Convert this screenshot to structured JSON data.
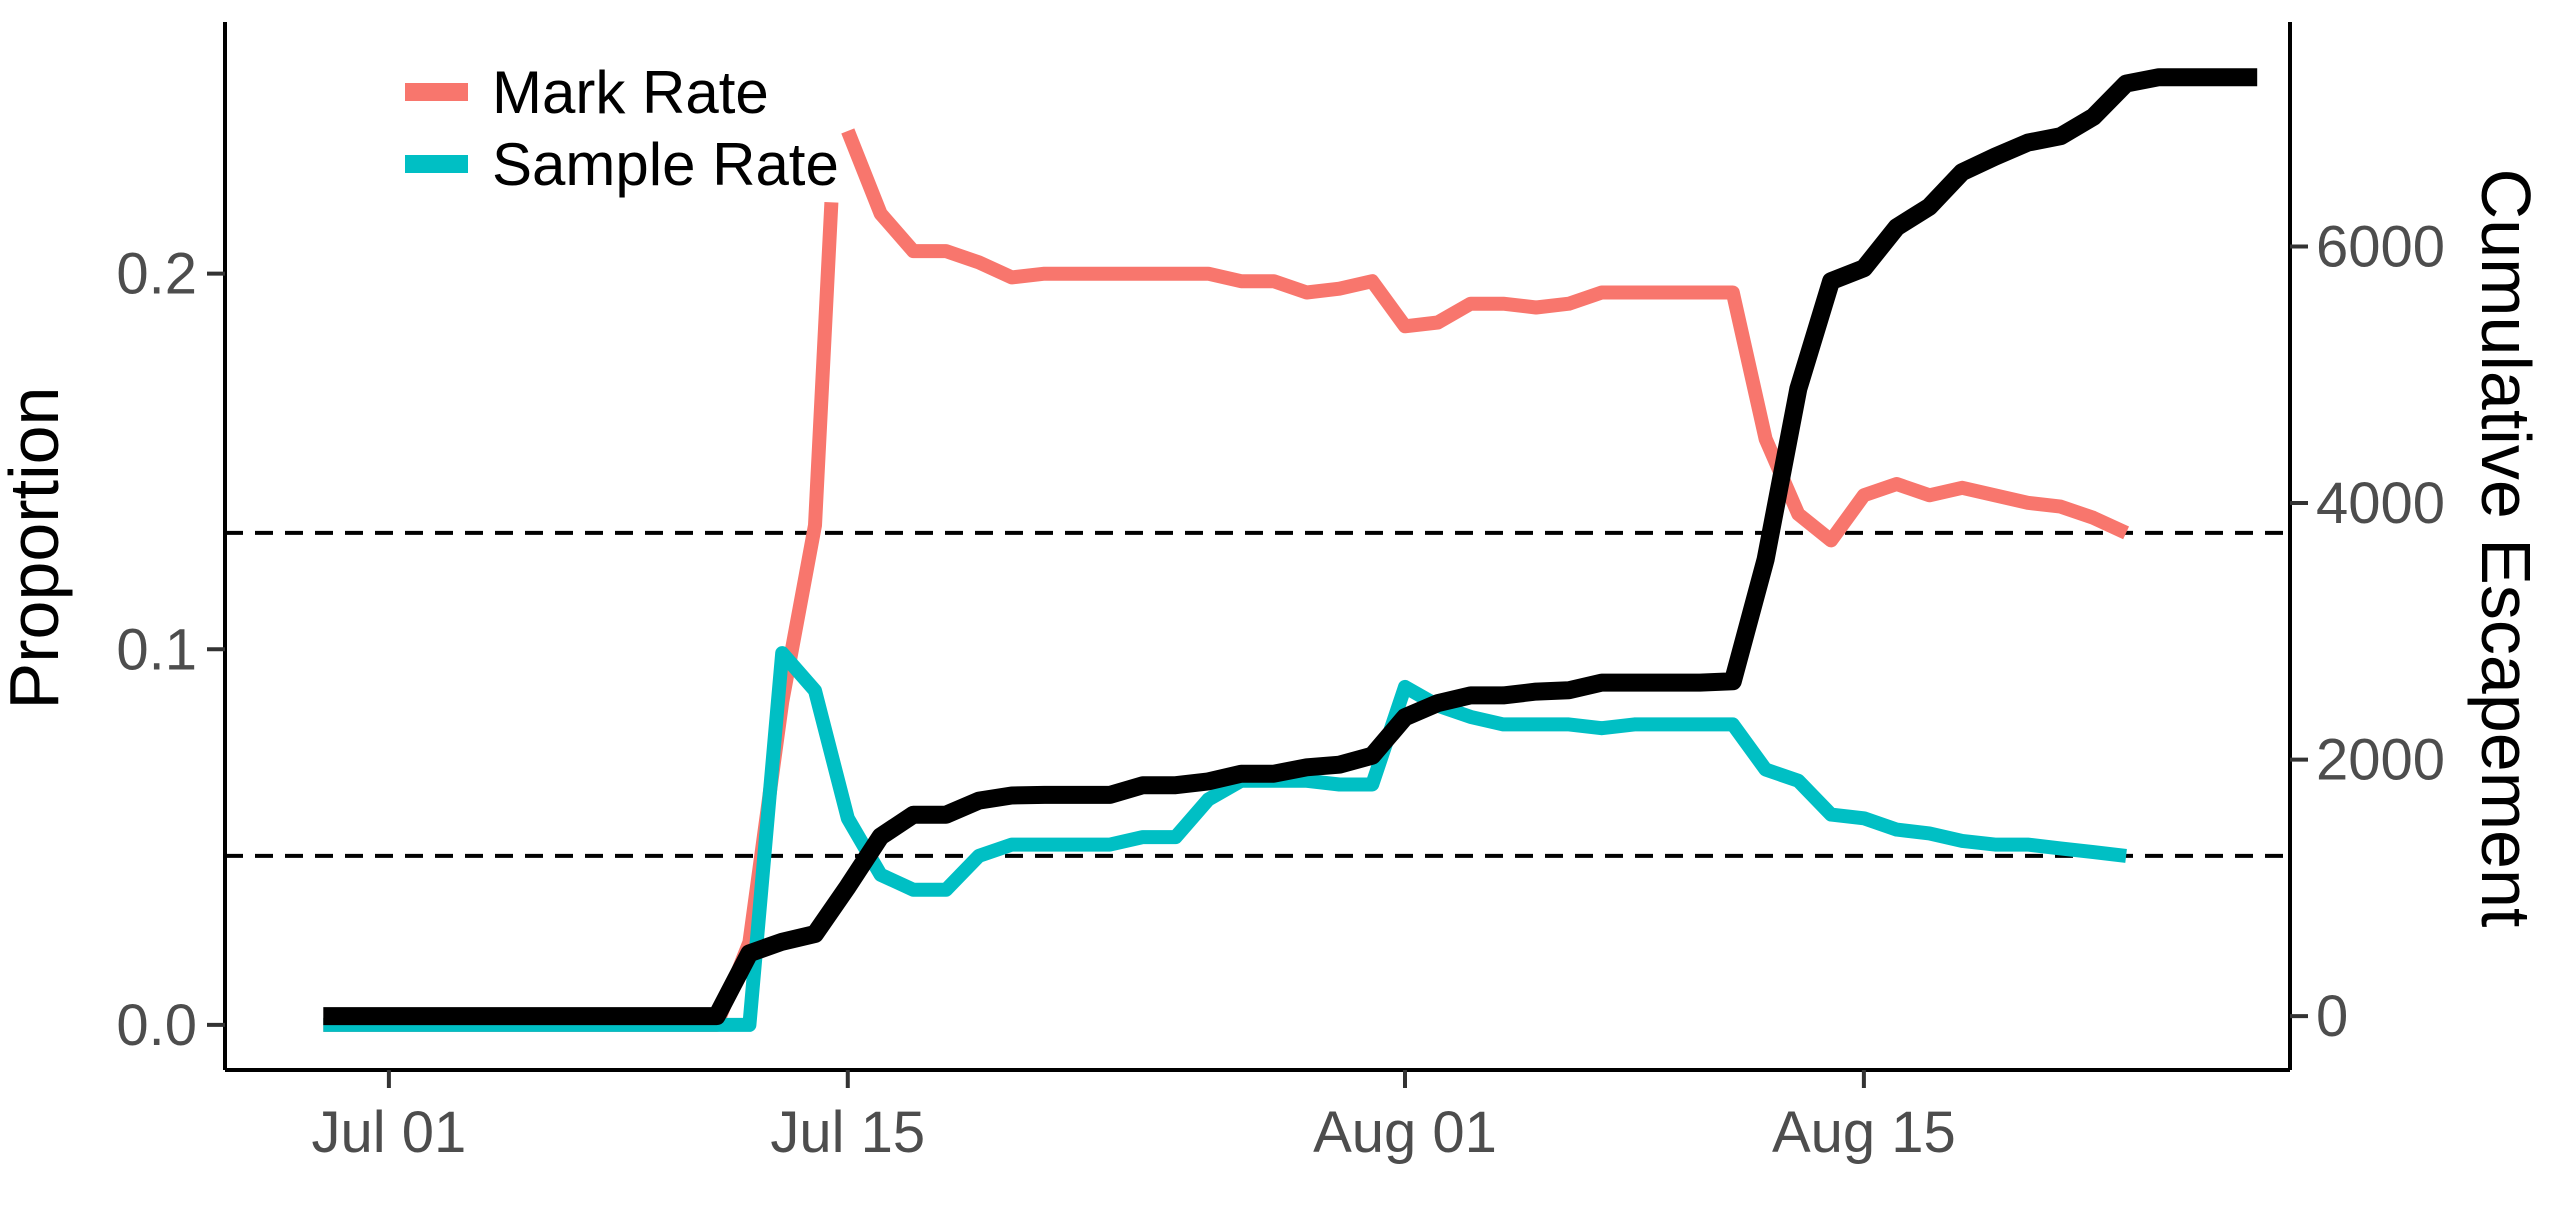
{
  "chart_data": {
    "type": "line",
    "title": "",
    "xlabel": "",
    "ylabel": "Proportion",
    "y2label": "Cumulative Escapement",
    "x_ticks": [
      "Jul 01",
      "Jul 15",
      "Aug 01",
      "Aug 15"
    ],
    "xlim": [
      "2020-06-26",
      "2020-08-28"
    ],
    "ylim": [
      -0.012,
      0.267
    ],
    "y_ticks": [
      "0.0",
      "0.1",
      "0.2"
    ],
    "y2lim": [
      -420,
      7750
    ],
    "y2_ticks": [
      "0",
      "2000",
      "4000",
      "6000"
    ],
    "grid": false,
    "legend_position": "top-left",
    "reference_lines": [
      {
        "axis": "y",
        "value": 0.131,
        "style": "dashed",
        "color": "#000000"
      },
      {
        "axis": "y",
        "value": 0.045,
        "style": "dashed",
        "color": "#000000"
      }
    ],
    "series": [
      {
        "name": "Mark Rate",
        "axis": "left",
        "color": "#F8766D",
        "segments": [
          {
            "x": [
              "2020-06-29",
              "2020-07-01",
              "2020-07-04",
              "2020-07-07",
              "2020-07-10",
              "2020-07-11",
              "2020-07-12",
              "2020-07-13",
              "2020-07-14",
              "2020-07-14T12:00"
            ],
            "y": [
              0.0,
              0.0,
              0.0,
              0.0,
              0.0,
              0.0,
              0.022,
              0.086,
              0.133,
              0.219
            ]
          },
          {
            "x": [
              "2020-07-15",
              "2020-07-16",
              "2020-07-17",
              "2020-07-18",
              "2020-07-19",
              "2020-07-20",
              "2020-07-21",
              "2020-07-22",
              "2020-07-23",
              "2020-07-24",
              "2020-07-25",
              "2020-07-26",
              "2020-07-27",
              "2020-07-28",
              "2020-07-29",
              "2020-07-30",
              "2020-07-31",
              "2020-08-01",
              "2020-08-02",
              "2020-08-03",
              "2020-08-04",
              "2020-08-05",
              "2020-08-06",
              "2020-08-07",
              "2020-08-08",
              "2020-08-09",
              "2020-08-10",
              "2020-08-11",
              "2020-08-12",
              "2020-08-13",
              "2020-08-14",
              "2020-08-15",
              "2020-08-16",
              "2020-08-17",
              "2020-08-18",
              "2020-08-19",
              "2020-08-20",
              "2020-08-21",
              "2020-08-22",
              "2020-08-23"
            ],
            "y": [
              0.238,
              0.216,
              0.206,
              0.206,
              0.203,
              0.199,
              0.2,
              0.2,
              0.2,
              0.2,
              0.2,
              0.2,
              0.198,
              0.198,
              0.195,
              0.196,
              0.198,
              0.186,
              0.187,
              0.192,
              0.192,
              0.191,
              0.192,
              0.195,
              0.195,
              0.195,
              0.195,
              0.195,
              0.156,
              0.136,
              0.129,
              0.141,
              0.144,
              0.141,
              0.143,
              0.141,
              0.139,
              0.138,
              0.135,
              0.131
            ]
          }
        ]
      },
      {
        "name": "Sample Rate",
        "axis": "left",
        "color": "#00BFC4",
        "segments": [
          {
            "x": [
              "2020-06-29",
              "2020-07-01",
              "2020-07-04",
              "2020-07-07",
              "2020-07-10",
              "2020-07-11",
              "2020-07-12",
              "2020-07-13",
              "2020-07-14",
              "2020-07-15",
              "2020-07-16",
              "2020-07-17",
              "2020-07-18",
              "2020-07-19",
              "2020-07-20",
              "2020-07-21",
              "2020-07-22",
              "2020-07-23",
              "2020-07-24",
              "2020-07-25",
              "2020-07-26",
              "2020-07-27",
              "2020-07-28",
              "2020-07-29",
              "2020-07-30",
              "2020-07-31",
              "2020-08-01",
              "2020-08-02",
              "2020-08-03",
              "2020-08-04",
              "2020-08-05",
              "2020-08-06",
              "2020-08-07",
              "2020-08-08",
              "2020-08-09",
              "2020-08-10",
              "2020-08-11",
              "2020-08-12",
              "2020-08-13",
              "2020-08-14",
              "2020-08-15",
              "2020-08-16",
              "2020-08-17",
              "2020-08-18",
              "2020-08-19",
              "2020-08-20",
              "2020-08-21",
              "2020-08-22",
              "2020-08-23"
            ],
            "y": [
              0.0,
              0.0,
              0.0,
              0.0,
              0.0,
              0.0,
              0.0,
              0.099,
              0.089,
              0.055,
              0.04,
              0.036,
              0.036,
              0.045,
              0.048,
              0.048,
              0.048,
              0.048,
              0.05,
              0.05,
              0.06,
              0.065,
              0.065,
              0.065,
              0.064,
              0.064,
              0.09,
              0.085,
              0.082,
              0.08,
              0.08,
              0.08,
              0.079,
              0.08,
              0.08,
              0.08,
              0.08,
              0.068,
              0.065,
              0.056,
              0.055,
              0.052,
              0.051,
              0.049,
              0.048,
              0.048,
              0.047,
              0.046,
              0.045
            ]
          }
        ]
      },
      {
        "name": "Cumulative Escapement",
        "axis": "right",
        "color": "#000000",
        "segments": [
          {
            "x": [
              "2020-06-29",
              "2020-07-01",
              "2020-07-04",
              "2020-07-07",
              "2020-07-10",
              "2020-07-11",
              "2020-07-12",
              "2020-07-13",
              "2020-07-14",
              "2020-07-15",
              "2020-07-16",
              "2020-07-17",
              "2020-07-18",
              "2020-07-19",
              "2020-07-20",
              "2020-07-21",
              "2020-07-22",
              "2020-07-23",
              "2020-07-24",
              "2020-07-25",
              "2020-07-26",
              "2020-07-27",
              "2020-07-28",
              "2020-07-29",
              "2020-07-30",
              "2020-07-31",
              "2020-08-01",
              "2020-08-02",
              "2020-08-03",
              "2020-08-04",
              "2020-08-05",
              "2020-08-06",
              "2020-08-07",
              "2020-08-08",
              "2020-08-09",
              "2020-08-10",
              "2020-08-11",
              "2020-08-12",
              "2020-08-13",
              "2020-08-14",
              "2020-08-15",
              "2020-08-16",
              "2020-08-17",
              "2020-08-18",
              "2020-08-19",
              "2020-08-20",
              "2020-08-21",
              "2020-08-22",
              "2020-08-23",
              "2020-08-24",
              "2020-08-25",
              "2020-08-26",
              "2020-08-27"
            ],
            "y": [
              0,
              0,
              0,
              0,
              0,
              0,
              490,
              580,
              640,
              1010,
              1400,
              1570,
              1570,
              1680,
              1720,
              1725,
              1725,
              1725,
              1800,
              1800,
              1830,
              1890,
              1890,
              1940,
              1960,
              2030,
              2330,
              2440,
              2500,
              2500,
              2530,
              2540,
              2600,
              2600,
              2600,
              2600,
              2610,
              3560,
              4890,
              5730,
              5830,
              6150,
              6310,
              6580,
              6700,
              6810,
              6860,
              7010,
              7270,
              7320,
              7320,
              7320,
              7320
            ]
          }
        ]
      }
    ]
  }
}
